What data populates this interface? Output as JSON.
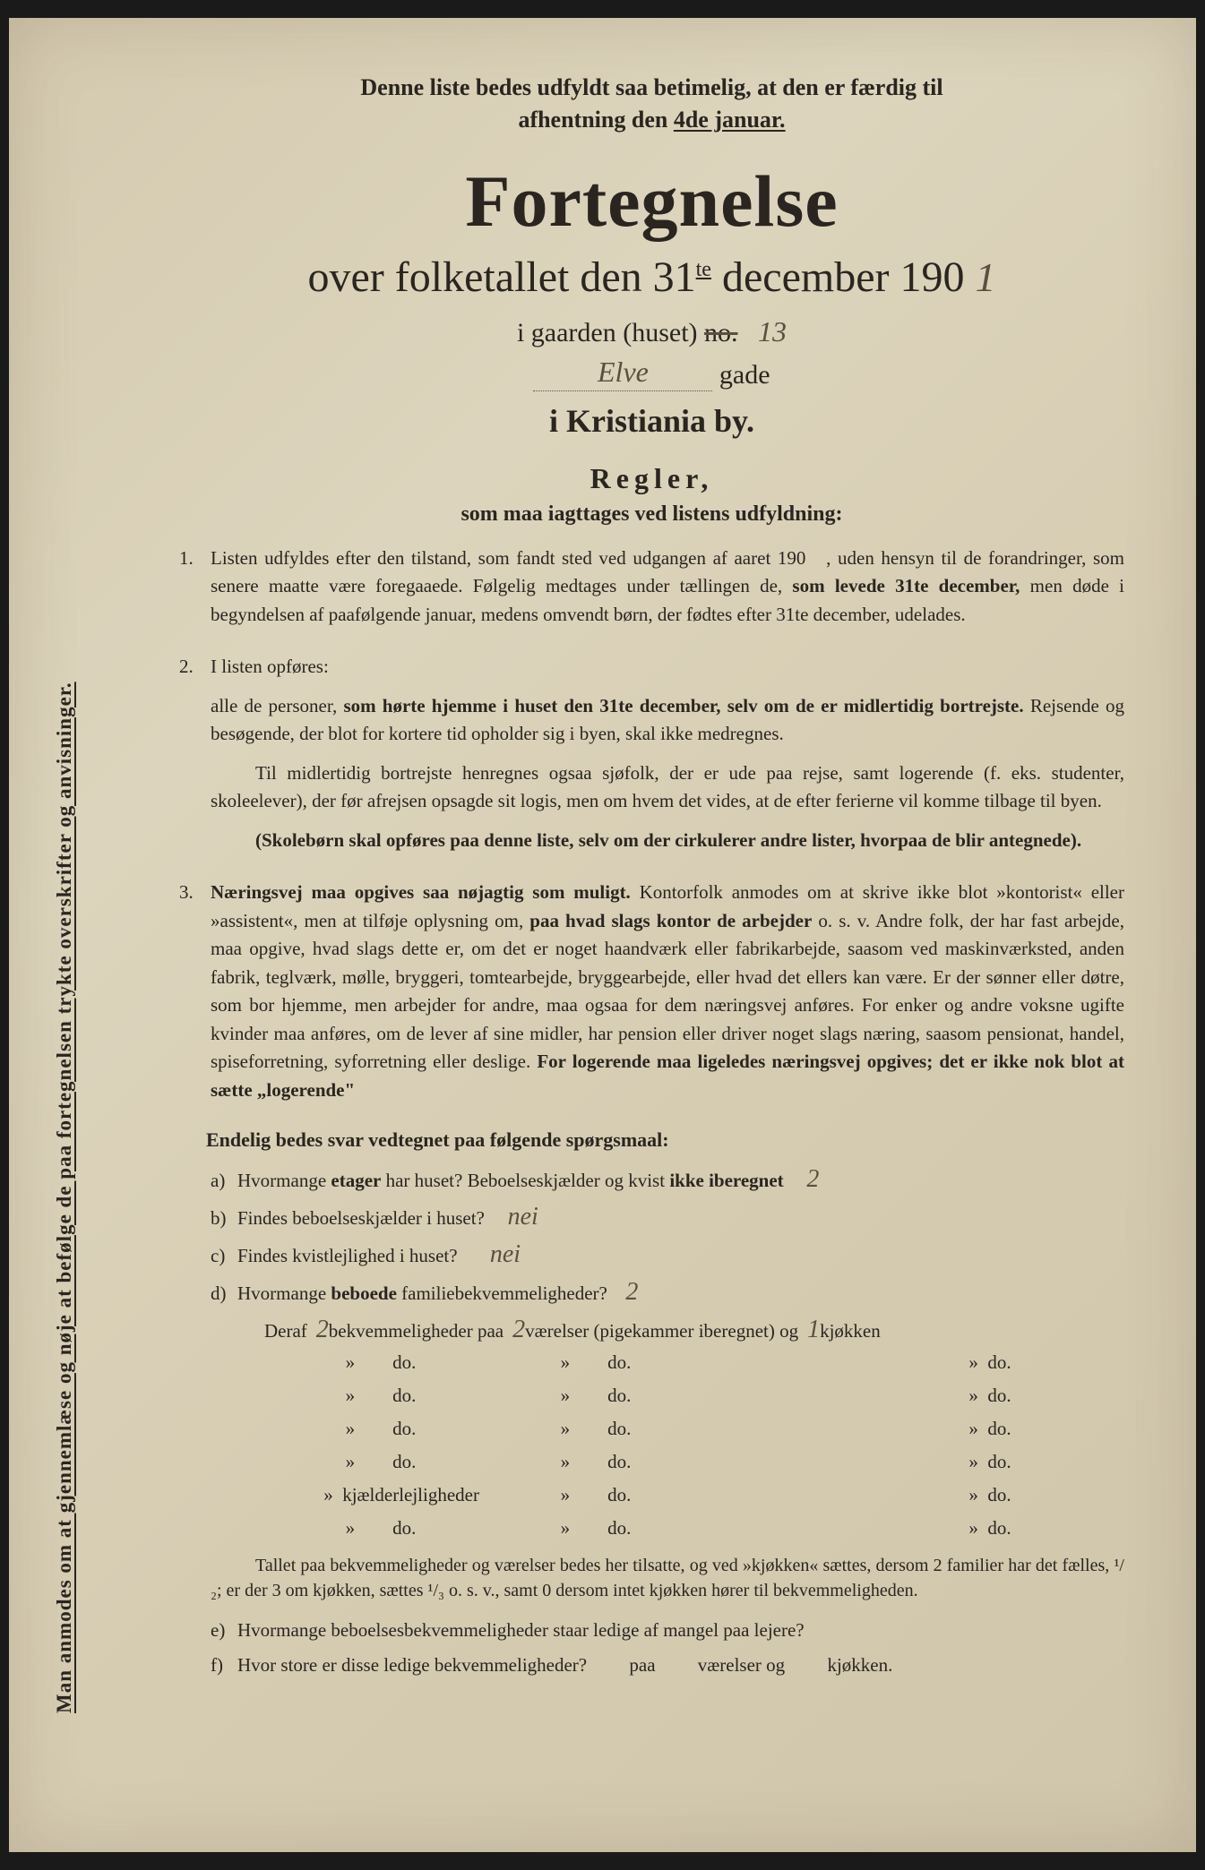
{
  "vertical_side_text": "Man anmodes om at gjennemlæse og nøje at befølge de paa fortegnelsen trykte overskrifter og anvisninger.",
  "top_instruction_line1": "Denne liste bedes udfyldt saa betimelig, at den er færdig til",
  "top_instruction_line2_pre": "afhentning den ",
  "top_instruction_line2_underlined": "4de januar.",
  "title": "Fortegnelse",
  "subtitle_pre": "over folketallet den 31",
  "subtitle_sup": "te",
  "subtitle_post": " december 190",
  "handwritten_year": "1",
  "line3_pre": "i gaarden (huset) ",
  "line3_crossed": "no.",
  "handwritten_house_no": "13",
  "handwritten_street": "Elve",
  "line4_suffix": "gade",
  "city": "i Kristiania by.",
  "regler_heading": "Regler,",
  "regler_sub": "som maa iagttages ved listens udfyldning:",
  "rule1_num": "1.",
  "rule1_text": "Listen udfyldes efter den tilstand, som fandt sted ved udgangen af aaret 190   , uden hensyn til de forandringer, som senere maatte være foregaaede. Følgelig medtages under tællingen de, som levede 31te december, men døde i begyndelsen af paafølgende januar, medens omvendt børn, der fødtes efter 31te december, udelades.",
  "rule2_num": "2.",
  "rule2_intro": "I listen opføres:",
  "rule2_p1": "alle de personer, som hørte hjemme i huset den 31te december, selv om de er midlertidig bortrejste. Rejsende og besøgende, der blot for kortere tid opholder sig i byen, skal ikke medregnes.",
  "rule2_p2": "Til midlertidig bortrejste henregnes ogsaa sjøfolk, der er ude paa rejse, samt logerende (f. eks. studenter, skoleelever), der før afrejsen opsagde sit logis, men om hvem det vides, at de efter ferierne vil komme tilbage til byen.",
  "rule2_p3": "(Skolebørn skal opføres paa denne liste, selv om der cirkulerer andre lister, hvorpaa de blir antegnede).",
  "rule3_num": "3.",
  "rule3_text": "Næringsvej maa opgives saa nøjagtig som muligt. Kontorfolk anmodes om at skrive ikke blot »kontorist« eller »assistent«, men at tilføje oplysning om, paa hvad slags kontor de arbejder o. s. v. Andre folk, der har fast arbejde, maa opgive, hvad slags dette er, om det er noget haandværk eller fabrikarbejde, saasom ved maskinværksted, anden fabrik, teglværk, mølle, bryggeri, tomtearbejde, bryggearbejde, eller hvad det ellers kan være. Er der sønner eller døtre, som bor hjemme, men arbejder for andre, maa ogsaa for dem næringsvej anføres. For enker og andre voksne ugifte kvinder maa anføres, om de lever af sine midler, har pension eller driver noget slags næring, saasom pensionat, handel, spiseforretning, syforretning eller deslige. For logerende maa ligeledes næringsvej opgives; det er ikke nok blot at sætte „logerende“",
  "questions_heading": "Endelig bedes svar vedtegnet paa følgende spørgsmaal:",
  "qa_letter": "a)",
  "qa_text": "Hvormange etager har huset? Beboelseskjælder og kvist ikke iberegnet",
  "qa_answer": "2",
  "qb_letter": "b)",
  "qb_text": "Findes beboelseskjælder i huset?",
  "qb_answer": "nei",
  "qc_letter": "c)",
  "qc_text": "Findes kvistlejlighed i huset?",
  "qc_answer": "nei",
  "qd_letter": "d)",
  "qd_text": "Hvormange beboede familiebekvemmeligheder?",
  "qd_answer": "2",
  "deraf_pre": "Deraf ",
  "deraf_ans1": "2",
  "deraf_mid1": " bekvemmeligheder paa ",
  "deraf_ans2": "2",
  "deraf_mid2": " værelser (pigekammer iberegnet) og ",
  "deraf_ans3": "1",
  "deraf_end": " kjøkken",
  "do_label": "do.",
  "do_kjaelder": "kjælderlejligheder",
  "small_note": "Tallet paa bekvemmeligheder og værelser bedes her tilsatte, og ved »kjøkken« sættes, dersom 2 familier har det fælles, ¹/₂; er der 3 om kjøkken, sættes ¹/₃ o. s. v., samt 0 dersom intet kjøkken hører til bekvemmeligheden.",
  "qe_letter": "e)",
  "qe_text": "Hvormange beboelsesbekvemmeligheder staar ledige af mangel paa lejere?",
  "qf_letter": "f)",
  "qf_text": "Hvor store er disse ledige bekvemmeligheder?",
  "qf_paa": "paa",
  "qf_vaer": "værelser og",
  "qf_kjok": "kjøkken.",
  "arrow": "»"
}
